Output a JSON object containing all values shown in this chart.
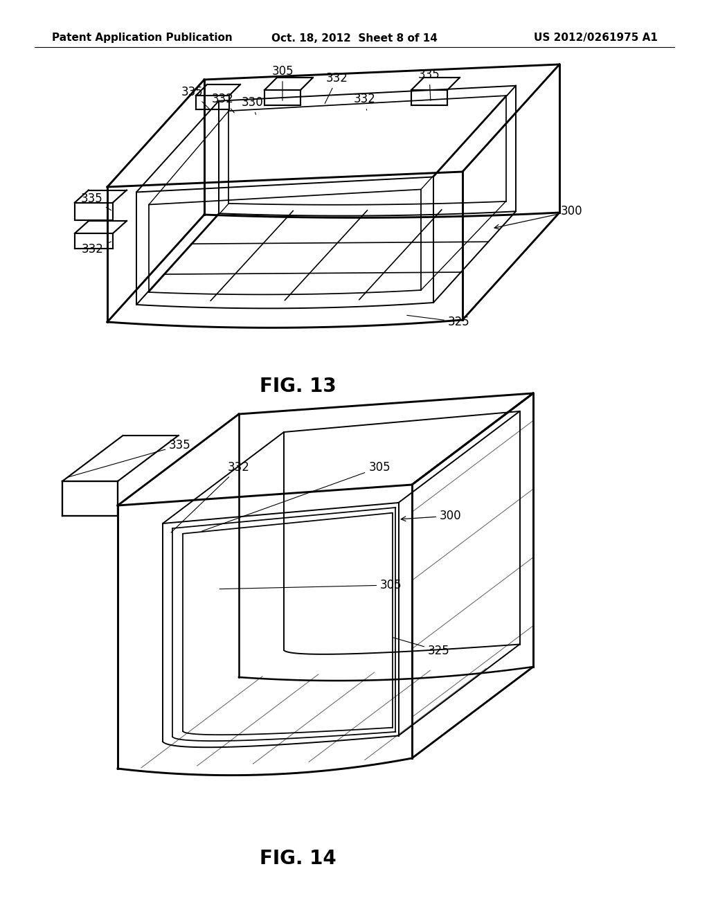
{
  "background_color": "#ffffff",
  "header_left": "Patent Application Publication",
  "header_center": "Oct. 18, 2012  Sheet 8 of 14",
  "header_right": "US 2012/0261975 A1",
  "header_fontsize": 11,
  "fig13_label": "FIG. 13",
  "fig14_label": "FIG. 14",
  "fig_label_fontsize": 20,
  "annotation_fontsize": 12,
  "line_color": "#000000",
  "line_width": 1.4
}
